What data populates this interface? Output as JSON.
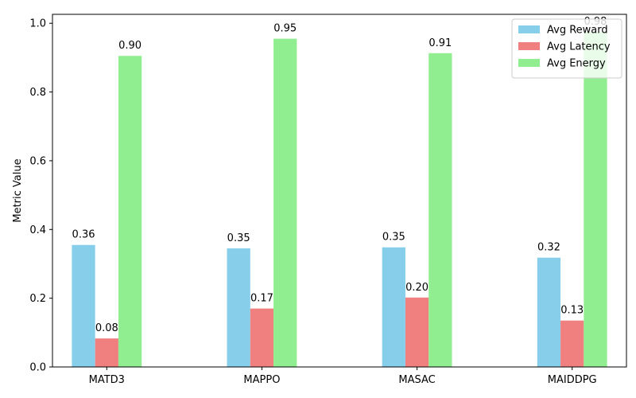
{
  "chart_data": {
    "type": "bar",
    "categories": [
      "MATD3",
      "MAPPO",
      "MASAC",
      "MAIDDPG"
    ],
    "series": [
      {
        "name": "Avg Reward",
        "color": "#87ceeb",
        "values": [
          0.355,
          0.345,
          0.348,
          0.318
        ],
        "labels": [
          "0.36",
          "0.35",
          "0.35",
          "0.32"
        ]
      },
      {
        "name": "Avg Latency",
        "color": "#f08080",
        "values": [
          0.083,
          0.17,
          0.202,
          0.135
        ],
        "labels": [
          "0.08",
          "0.17",
          "0.20",
          "0.13"
        ]
      },
      {
        "name": "Avg Energy",
        "color": "#90ee90",
        "values": [
          0.905,
          0.955,
          0.913,
          0.975
        ],
        "labels": [
          "0.90",
          "0.95",
          "0.91",
          "0.98"
        ]
      }
    ],
    "ylabel": "Metric Value",
    "xlabel": "",
    "title": "",
    "ylim": [
      0,
      1.026
    ],
    "yticks": [
      "0.0",
      "0.2",
      "0.4",
      "0.6",
      "0.8",
      "1.0"
    ],
    "grid": false,
    "legend_position": "top-right"
  }
}
